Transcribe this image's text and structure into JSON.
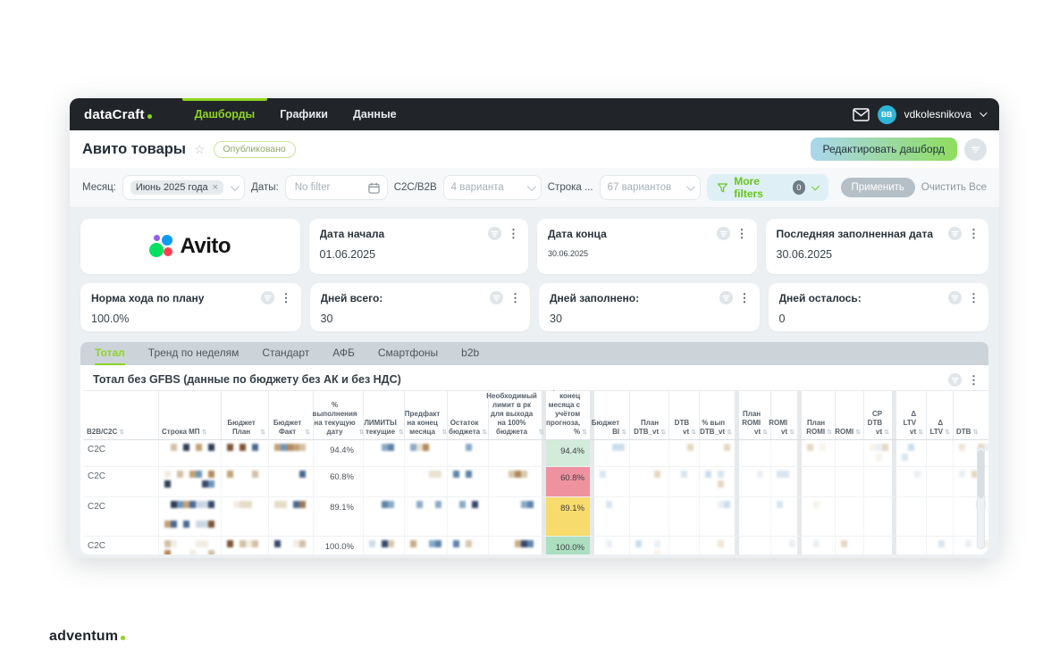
{
  "topnav": {
    "logo_text": "dataCraft",
    "nav_items": [
      {
        "label": "Дашборды",
        "active": true
      },
      {
        "label": "Графики",
        "active": false
      },
      {
        "label": "Данные",
        "active": false
      }
    ],
    "user_name": "vdkolesnikova",
    "avatar_initials": "BB"
  },
  "titlebar": {
    "title": "Авито товары",
    "status_badge": "Опубликовано",
    "edit_button": "Редактировать дашборд"
  },
  "filterbar": {
    "month_label": "Месяц:",
    "month_chip": "Июнь 2025 года",
    "dates_label": "Даты:",
    "dates_placeholder": "No filter",
    "c2c_label": "C2C/B2B",
    "c2c_value": "4 варианта",
    "stroka_label": "Строка ...",
    "stroka_value": "67 вариантов",
    "more_filters_label": "More filters",
    "more_filters_count": "0",
    "apply_button": "Применить",
    "clear_button": "Очистить Все"
  },
  "cards_row1": [
    {
      "type": "logo",
      "logo_text": "Avito"
    },
    {
      "title": "Дата начала",
      "value": "01.06.2025"
    },
    {
      "title": "Дата конца",
      "value": "30.06.2025",
      "small_value": true
    },
    {
      "title": "Последняя заполненная дата",
      "value": "30.06.2025"
    }
  ],
  "cards_row2": [
    {
      "title": "Норма хода по плану",
      "value": "100.0%"
    },
    {
      "title": "Дней всего:",
      "value": "30"
    },
    {
      "title": "Дней заполнено:",
      "value": "30"
    },
    {
      "title": "Дней осталось:",
      "value": "0"
    }
  ],
  "view_tabs": [
    {
      "label": "Тотал",
      "active": true
    },
    {
      "label": "Тренд по неделям",
      "active": false
    },
    {
      "label": "Стандарт",
      "active": false
    },
    {
      "label": "АФБ",
      "active": false
    },
    {
      "label": "Смартфоны",
      "active": false
    },
    {
      "label": "b2b",
      "active": false
    }
  ],
  "table": {
    "title": "Тотал без GFBS (данные по бюджету без АК и без НДС)",
    "columns": [
      "B2B/C2C",
      "Строка МП",
      "Бюджет План",
      "Бюджет Факт",
      "% выполнения на текущую дату",
      "ЛИМИТЫ текущие",
      "Предфакт на конец месяца",
      "Остаток бюджета",
      "Необходимый лимит в рк для выхода на 100% бюджета",
      "Тренд на конец месяца с учётом прогноза, %",
      "Бюджет BI",
      "План DTB_vt",
      "DTB vt",
      "% вып DTB_vt",
      "План ROMI vt",
      "ROMI vt",
      "План ROMI",
      "ROMI",
      "CP DTB vt",
      "Δ LTV vt",
      "Δ LTV",
      "DTB"
    ],
    "rows": [
      {
        "b2b_c2c": "C2C",
        "pct_completion": "94.4%",
        "trend_value": "94.4%",
        "trend_color": "#d2ebda"
      },
      {
        "b2b_c2c": "C2C",
        "pct_completion": "60.8%",
        "trend_value": "60.8%",
        "trend_color": "#ee92a0"
      },
      {
        "b2b_c2c": "C2C",
        "pct_completion": "89.1%",
        "trend_value": "89.1%",
        "trend_color": "#f7db6d"
      },
      {
        "b2b_c2c": "C2C",
        "pct_completion": "100.0%",
        "trend_value": "100.0%",
        "trend_color": "#abdfc0"
      }
    ]
  },
  "footer": {
    "logo_text": "adventum"
  },
  "colors": {
    "accent_green": "#8fd41f",
    "nav_bg": "#212429",
    "avatar_bg": "#2fb5d6",
    "trend_green": "#d2ebda",
    "trend_red": "#ee92a0",
    "trend_yellow": "#f7db6d"
  }
}
